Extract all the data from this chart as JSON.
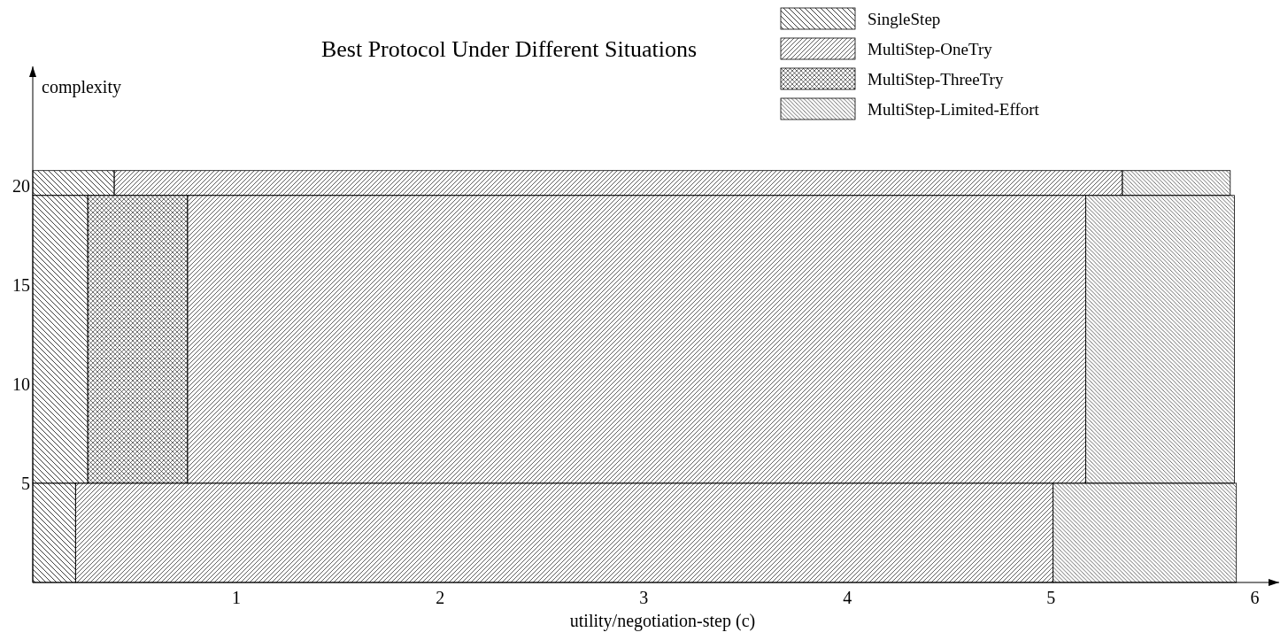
{
  "chart_data": {
    "type": "bar",
    "orientation": "horizontal",
    "title": "Best Protocol Under Different Situations",
    "xlabel": "utility/negotiation-step (c)",
    "ylabel": "complexity",
    "x": [
      20.125,
      12.25,
      2.5
    ],
    "series": [
      {
        "name": "SingleStep",
        "color": "#000000",
        "base": [
          0,
          0,
          0
        ],
        "values": [
          0.4,
          0.27,
          0.21
        ]
      },
      {
        "name": "MultiStep-OneTry",
        "color": "#000000",
        "base": [
          0.4,
          0.76,
          0.21
        ],
        "values": [
          4.95,
          4.41,
          4.8
        ]
      },
      {
        "name": "MultiStep-ThreeTry",
        "color": "#000000",
        "base": [
          null,
          0.27,
          null
        ],
        "values": [
          null,
          0.49,
          null
        ]
      },
      {
        "name": "MultiStep-Limited-Effort",
        "color": "#000000",
        "base": [
          5.35,
          5.17,
          5.01
        ],
        "values": [
          0.53,
          0.73,
          0.9
        ]
      }
    ],
    "xlim": [
      0,
      6.12
    ],
    "xticks": [
      1,
      2,
      3,
      4,
      5,
      6
    ],
    "ylim": [
      0,
      26
    ],
    "yticks": [
      5,
      10,
      15,
      20
    ],
    "legend": "top right"
  }
}
